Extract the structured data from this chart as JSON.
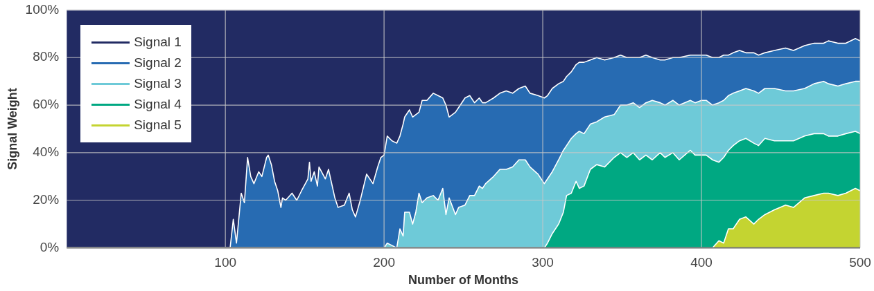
{
  "chart_data": {
    "type": "area",
    "stacked": true,
    "xlabel": "Number of Months",
    "ylabel": "Signal Weight",
    "x": [
      0,
      100,
      103,
      105,
      107,
      110,
      112,
      114,
      116,
      118,
      121,
      123,
      126,
      127,
      129,
      131,
      133,
      135,
      136,
      138,
      142,
      145,
      148,
      152,
      153,
      154,
      156,
      158,
      159,
      163,
      165,
      169,
      171,
      175,
      178,
      180,
      182,
      185,
      189,
      193,
      196,
      198,
      200,
      202,
      205,
      208,
      210,
      212,
      213,
      216,
      218,
      220,
      222,
      224,
      227,
      231,
      234,
      237,
      239,
      241,
      245,
      247,
      251,
      254,
      257,
      260,
      262,
      264,
      269,
      273,
      277,
      281,
      285,
      289,
      292,
      297,
      301,
      303,
      306,
      310,
      313,
      315,
      318,
      321,
      323,
      326,
      330,
      334,
      339,
      345,
      349,
      353,
      357,
      361,
      365,
      369,
      374,
      377,
      382,
      386,
      393,
      396,
      400,
      403,
      407,
      411,
      414,
      417,
      420,
      424,
      428,
      433,
      436,
      440,
      446,
      453,
      458,
      465,
      471,
      477,
      480,
      486,
      491,
      497,
      500
    ],
    "xlim": [
      0,
      500
    ],
    "xticks": [
      100,
      200,
      300,
      400,
      500
    ],
    "ylim": [
      0,
      100
    ],
    "yticks": [
      {
        "value": 0,
        "label": "0%"
      },
      {
        "value": 20,
        "label": "20%"
      },
      {
        "value": 40,
        "label": "40%"
      },
      {
        "value": 60,
        "label": "60%"
      },
      {
        "value": 80,
        "label": "80%"
      },
      {
        "value": 100,
        "label": "100%"
      }
    ],
    "grid": true,
    "legend": "top left",
    "series": [
      {
        "name": "Signal 5",
        "color": "#c4d431",
        "values": [
          0,
          0,
          0,
          0,
          0,
          0,
          0,
          0,
          0,
          0,
          0,
          0,
          0,
          0,
          0,
          0,
          0,
          0,
          0,
          0,
          0,
          0,
          0,
          0,
          0,
          0,
          0,
          0,
          0,
          0,
          0,
          0,
          0,
          0,
          0,
          0,
          0,
          0,
          0,
          0,
          0,
          0,
          0,
          0,
          0,
          0,
          0,
          0,
          0,
          0,
          0,
          0,
          0,
          0,
          0,
          0,
          0,
          0,
          0,
          0,
          0,
          0,
          0,
          0,
          0,
          0,
          0,
          0,
          0,
          0,
          0,
          0,
          0,
          0,
          0,
          0,
          0,
          0,
          0,
          0,
          0,
          0,
          0,
          0,
          0,
          0,
          0,
          0,
          0,
          0,
          0,
          0,
          0,
          0,
          0,
          0,
          0,
          0,
          0,
          0,
          0,
          0,
          0,
          0,
          0,
          3,
          2,
          8,
          8,
          12,
          13,
          10,
          12,
          14,
          16,
          18,
          17,
          21,
          22,
          23,
          23,
          22,
          23,
          25,
          24
        ]
      },
      {
        "name": "Signal 4",
        "color": "#00a882",
        "values": [
          0,
          0,
          0,
          0,
          0,
          0,
          0,
          0,
          0,
          0,
          0,
          0,
          0,
          0,
          0,
          0,
          0,
          0,
          0,
          0,
          0,
          0,
          0,
          0,
          0,
          0,
          0,
          0,
          0,
          0,
          0,
          0,
          0,
          0,
          0,
          0,
          0,
          0,
          0,
          0,
          0,
          0,
          0,
          0,
          0,
          0,
          0,
          0,
          0,
          0,
          0,
          0,
          0,
          0,
          0,
          0,
          0,
          0,
          0,
          0,
          0,
          0,
          0,
          0,
          0,
          0,
          0,
          0,
          0,
          0,
          0,
          0,
          0,
          0,
          0,
          0,
          0,
          2,
          6,
          10,
          15,
          22,
          23,
          28,
          25,
          26,
          33,
          35,
          34,
          38,
          40,
          38,
          40,
          37,
          39,
          37,
          40,
          38,
          40,
          37,
          41,
          39,
          39,
          39,
          37,
          33,
          36,
          33,
          35,
          33,
          33,
          34,
          31,
          32,
          29,
          27,
          28,
          26,
          26,
          25,
          24,
          25,
          25,
          24,
          24
        ]
      },
      {
        "name": "Signal 3",
        "color": "#6ecad8",
        "values": [
          0,
          0,
          0,
          0,
          0,
          0,
          0,
          0,
          0,
          0,
          0,
          0,
          0,
          0,
          0,
          0,
          0,
          0,
          0,
          0,
          0,
          0,
          0,
          0,
          0,
          0,
          0,
          0,
          0,
          0,
          0,
          0,
          0,
          0,
          0,
          0,
          0,
          0,
          0,
          0,
          0,
          0,
          0,
          2,
          1,
          0,
          8,
          5,
          15,
          15,
          10,
          15,
          23,
          19,
          21,
          22,
          20,
          25,
          14,
          21,
          14,
          17,
          18,
          22,
          22,
          26,
          25,
          27,
          30,
          33,
          33,
          34,
          37,
          37,
          34,
          31,
          27,
          27,
          26,
          27,
          26,
          21,
          23,
          20,
          24,
          22,
          19,
          18,
          21,
          18,
          20,
          22,
          21,
          22,
          22,
          25,
          21,
          22,
          22,
          23,
          21,
          22,
          23,
          23,
          23,
          25,
          24,
          23,
          22,
          21,
          21,
          22,
          22,
          21,
          22,
          21,
          21,
          20,
          21,
          22,
          22,
          21,
          21,
          21,
          22
        ]
      },
      {
        "name": "Signal 2",
        "color": "#276bb2",
        "values": [
          0,
          0,
          0,
          12,
          2,
          23,
          19,
          38,
          30,
          27,
          32,
          30,
          38,
          39,
          35,
          28,
          24,
          17,
          21,
          20,
          23,
          20,
          24,
          29,
          36,
          28,
          32,
          26,
          34,
          29,
          33,
          21,
          17,
          18,
          23,
          16,
          13,
          20,
          31,
          27,
          34,
          38,
          39,
          45,
          44,
          44,
          39,
          47,
          40,
          43,
          45,
          41,
          34,
          43,
          41,
          43,
          44,
          38,
          46,
          34,
          43,
          42,
          45,
          42,
          39,
          37,
          36,
          34,
          33,
          32,
          33,
          31,
          30,
          31,
          31,
          33,
          36,
          35,
          35,
          32,
          29,
          29,
          28,
          29,
          29,
          30,
          27,
          27,
          24,
          24,
          21,
          20,
          19,
          21,
          20,
          18,
          18,
          19,
          18,
          20,
          19,
          20,
          19,
          19,
          20,
          19,
          19,
          17,
          17,
          17,
          15,
          16,
          16,
          15,
          16,
          18,
          17,
          18,
          17,
          16,
          18,
          18,
          17,
          18,
          17
        ]
      },
      {
        "name": "Signal 1",
        "color": "#222b63",
        "values": [
          100,
          100,
          100,
          88,
          98,
          77,
          81,
          62,
          70,
          73,
          68,
          70,
          62,
          61,
          65,
          72,
          76,
          83,
          79,
          80,
          77,
          80,
          76,
          71,
          64,
          72,
          68,
          74,
          66,
          71,
          67,
          79,
          83,
          82,
          77,
          84,
          87,
          80,
          69,
          73,
          66,
          62,
          61,
          53,
          55,
          56,
          53,
          48,
          45,
          42,
          45,
          44,
          43,
          38,
          38,
          35,
          36,
          37,
          40,
          45,
          43,
          41,
          37,
          36,
          39,
          37,
          39,
          39,
          37,
          35,
          34,
          35,
          33,
          32,
          35,
          36,
          37,
          36,
          33,
          31,
          30,
          28,
          26,
          23,
          22,
          22,
          21,
          20,
          21,
          20,
          19,
          20,
          20,
          20,
          19,
          20,
          21,
          21,
          20,
          20,
          19,
          19,
          19,
          19,
          20,
          20,
          19,
          19,
          18,
          17,
          18,
          18,
          19,
          18,
          17,
          16,
          17,
          15,
          14,
          14,
          13,
          14,
          14,
          12,
          13
        ]
      }
    ]
  }
}
